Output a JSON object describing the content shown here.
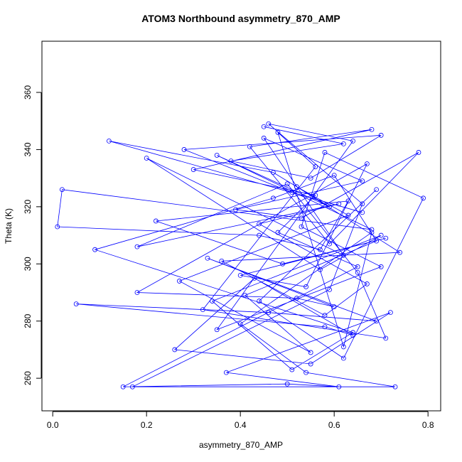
{
  "chart_data": {
    "type": "line",
    "markers": "open-circle",
    "title": "ATOM3 Northbound asymmetry_870_AMP",
    "x_label": "asymmetry_870_AMP",
    "y_label": "Theta (K)",
    "color": "#0000ff",
    "xlim": [
      -0.023,
      0.827
    ],
    "ylim": [
      248.6,
      377.9
    ],
    "xticks": [
      {
        "value": 0,
        "label": "0.0"
      },
      0.2,
      0.4,
      0.6,
      0.8
    ],
    "yticks": [
      260,
      280,
      300,
      320,
      340,
      360
    ],
    "x": [
      0.45,
      0.62,
      0.38,
      0.55,
      0.7,
      0.28,
      0.51,
      0.66,
      0.12,
      0.47,
      0.59,
      0.35,
      0.68,
      0.02,
      0.01,
      0.44,
      0.57,
      0.63,
      0.22,
      0.49,
      0.71,
      0.4,
      0.54,
      0.67,
      0.18,
      0.52,
      0.6,
      0.33,
      0.69,
      0.46,
      0.05,
      0.58,
      0.64,
      0.43,
      0.26,
      0.55,
      0.72,
      0.37,
      0.61,
      0.5,
      0.15,
      0.65,
      0.48,
      0.56,
      0.3,
      0.68,
      0.42,
      0.59,
      0.78,
      0.53,
      0.39,
      0.66,
      0.45,
      0.62,
      0.2,
      0.57,
      0.7,
      0.34,
      0.51,
      0.64,
      0.09,
      0.47,
      0.6,
      0.69,
      0.41,
      0.55,
      0.27,
      0.63,
      0.52,
      0.74,
      0.36,
      0.58,
      0.67,
      0.44,
      0.61,
      0.18,
      0.5,
      0.65,
      0.71,
      0.32,
      0.56,
      0.48,
      0.62,
      0.68,
      0.4,
      0.54,
      0.73,
      0.17,
      0.59,
      0.66,
      0.46,
      0.64,
      0.35,
      0.7,
      0.53,
      0.58,
      0.79,
      0.62,
      0.44,
      0.69
    ],
    "values": [
      348,
      342,
      336,
      330,
      345,
      340,
      325,
      318,
      343,
      332,
      320,
      338,
      312,
      326,
      313,
      310,
      305,
      322,
      315,
      300,
      309,
      296,
      292,
      335,
      290,
      288,
      285,
      302,
      280,
      283,
      286,
      278,
      275,
      295,
      270,
      265,
      283,
      262,
      257,
      258,
      257,
      299,
      311,
      324,
      333,
      347,
      341,
      307,
      339,
      316,
      319,
      329,
      344,
      303,
      337,
      298,
      310,
      287,
      263,
      276,
      305,
      323,
      331,
      308,
      289,
      269,
      294,
      317,
      327,
      304,
      301,
      282,
      293,
      314,
      321,
      306,
      328,
      297,
      274,
      284,
      334,
      346,
      271,
      311,
      279,
      262,
      257,
      257,
      291,
      321,
      349,
      343,
      277,
      299,
      313,
      339,
      323,
      267,
      287,
      326
    ]
  }
}
